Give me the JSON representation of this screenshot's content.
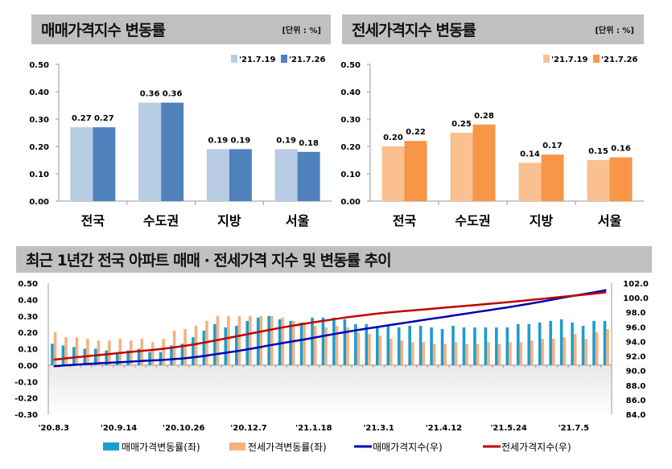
{
  "chart_data": [
    {
      "type": "bar",
      "title": "매매가격지수 변동률",
      "unit_note": "[단위 : %]",
      "categories": [
        "전국",
        "수도권",
        "지방",
        "서울"
      ],
      "series": [
        {
          "name": "'21.7.19",
          "values": [
            0.27,
            0.36,
            0.19,
            0.19
          ],
          "color": "#b8cce4"
        },
        {
          "name": "'21.7.26",
          "values": [
            0.27,
            0.36,
            0.19,
            0.18
          ],
          "color": "#4f81bd"
        }
      ],
      "ylim": [
        0,
        0.5
      ],
      "yticks": [
        "0.00",
        "0.10",
        "0.20",
        "0.30",
        "0.40",
        "0.50"
      ],
      "legend": "top-right",
      "grid": false
    },
    {
      "type": "bar",
      "title": "전세가격지수 변동률",
      "unit_note": "[단위 : %]",
      "categories": [
        "전국",
        "수도권",
        "지방",
        "서울"
      ],
      "series": [
        {
          "name": "'21.7.19",
          "values": [
            0.2,
            0.25,
            0.14,
            0.15
          ],
          "color": "#fac090"
        },
        {
          "name": "'21.7.26",
          "values": [
            0.22,
            0.28,
            0.17,
            0.16
          ],
          "color": "#f79646"
        }
      ],
      "ylim": [
        0,
        0.5
      ],
      "yticks": [
        "0.00",
        "0.10",
        "0.20",
        "0.30",
        "0.40",
        "0.50"
      ],
      "legend": "top-right",
      "grid": false
    },
    {
      "type": "bar+line",
      "title": "최근 1년간 전국 아파트 매매 · 전세가격 지수 및 변동률 추이",
      "x_tick_labels": [
        "'20.8.3",
        "'20.9.14",
        "'20.10.26",
        "'20.12.7",
        "'21.1.18",
        "'21.3.1",
        "'21.4.12",
        "'21.5.24",
        "'21.7.5"
      ],
      "ylim_left": [
        -0.3,
        0.5
      ],
      "yticks_left": [
        "0.50",
        "0.40",
        "0.30",
        "0.20",
        "0.10",
        "0.00",
        "-0.10",
        "-0.20",
        "-0.30"
      ],
      "ylim_right": [
        84,
        102
      ],
      "yticks_right": [
        "102.0",
        "100.0",
        "98.0",
        "96.0",
        "94.0",
        "92.0",
        "90.0",
        "88.0",
        "86.0",
        "84.0"
      ],
      "legend": "bottom",
      "series": [
        {
          "name": "매매가격변동률(좌)",
          "type": "bar",
          "axis": "left",
          "color": "#1f9bcf",
          "values": [
            0.13,
            0.12,
            0.11,
            0.1,
            0.1,
            0.09,
            0.08,
            0.09,
            0.1,
            0.08,
            0.08,
            0.12,
            0.13,
            0.17,
            0.21,
            0.25,
            0.23,
            0.24,
            0.27,
            0.29,
            0.3,
            0.28,
            0.27,
            0.26,
            0.29,
            0.29,
            0.29,
            0.28,
            0.25,
            0.25,
            0.23,
            0.24,
            0.23,
            0.24,
            0.24,
            0.23,
            0.22,
            0.24,
            0.23,
            0.23,
            0.23,
            0.23,
            0.23,
            0.25,
            0.25,
            0.26,
            0.27,
            0.28,
            0.26,
            0.24,
            0.27,
            0.27
          ]
        },
        {
          "name": "전세가격변동률(좌)",
          "type": "bar",
          "axis": "left",
          "color": "#f3b27f",
          "values": [
            0.2,
            0.17,
            0.17,
            0.16,
            0.15,
            0.15,
            0.16,
            0.15,
            0.16,
            0.14,
            0.16,
            0.21,
            0.22,
            0.24,
            0.27,
            0.3,
            0.3,
            0.3,
            0.3,
            0.3,
            0.3,
            0.29,
            0.27,
            0.26,
            0.24,
            0.23,
            0.24,
            0.23,
            0.2,
            0.19,
            0.18,
            0.16,
            0.15,
            0.14,
            0.14,
            0.13,
            0.13,
            0.14,
            0.13,
            0.13,
            0.14,
            0.13,
            0.14,
            0.14,
            0.15,
            0.16,
            0.16,
            0.17,
            0.19,
            0.16,
            0.2,
            0.22
          ]
        },
        {
          "name": "매매가격지수(우)",
          "type": "line",
          "axis": "right",
          "color": "#0000b4",
          "values": [
            90.6,
            90.71,
            90.81,
            90.9,
            90.99,
            91.07,
            91.14,
            91.22,
            91.31,
            91.38,
            91.45,
            91.56,
            91.68,
            91.84,
            92.03,
            92.26,
            92.47,
            92.69,
            92.94,
            93.21,
            93.49,
            93.75,
            94.0,
            94.24,
            94.51,
            94.78,
            95.05,
            95.31,
            95.55,
            95.79,
            96.01,
            96.24,
            96.46,
            96.69,
            96.92,
            97.14,
            97.35,
            97.58,
            97.8,
            98.03,
            98.25,
            98.48,
            98.7,
            98.95,
            99.2,
            99.46,
            99.73,
            100.01,
            100.27,
            100.51,
            100.78,
            101.05
          ]
        },
        {
          "name": "전세가격지수(우)",
          "type": "line",
          "axis": "right",
          "color": "#c00000",
          "values": [
            91.5,
            91.66,
            91.82,
            91.97,
            92.11,
            92.25,
            92.4,
            92.54,
            92.69,
            92.82,
            92.97,
            93.17,
            93.38,
            93.61,
            93.87,
            94.16,
            94.45,
            94.74,
            95.03,
            95.32,
            95.61,
            95.89,
            96.15,
            96.4,
            96.63,
            96.85,
            97.08,
            97.3,
            97.49,
            97.67,
            97.84,
            97.99,
            98.12,
            98.25,
            98.37,
            98.5,
            98.63,
            98.75,
            98.88,
            99.01,
            99.14,
            99.27,
            99.4,
            99.54,
            99.69,
            99.84,
            99.98,
            100.14,
            100.28,
            100.42,
            100.58,
            100.76
          ]
        }
      ]
    }
  ]
}
